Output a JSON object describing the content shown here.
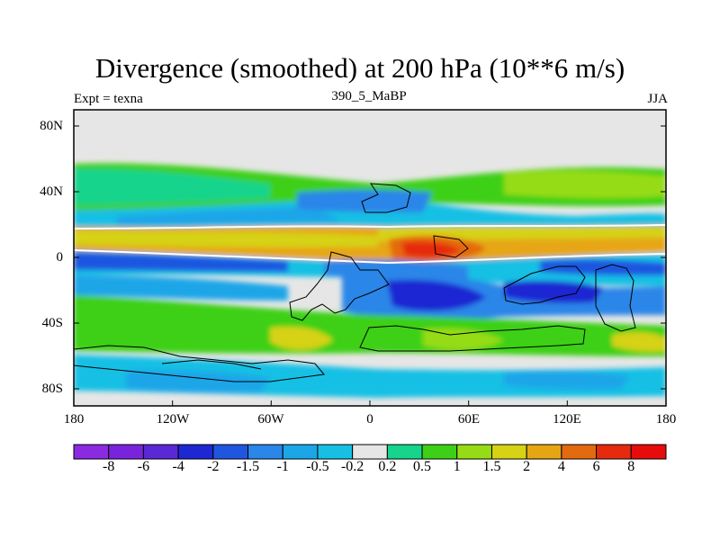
{
  "title": "Divergence (smoothed) at 200 hPa (10**6 m/s)",
  "left_string": "Expt = texna",
  "center_string": "390_5_MaBP",
  "right_string": "JJA",
  "lat_ticks": [
    "80N",
    "40N",
    "0",
    "40S",
    "80S"
  ],
  "lon_ticks": [
    "180",
    "120W",
    "60W",
    "0",
    "60E",
    "120E",
    "180"
  ],
  "colorbar": {
    "labels": [
      "-8",
      "-6",
      "-4",
      "-2",
      "-1.5",
      "-1",
      "-0.5",
      "-0.2",
      "0.2",
      "0.5",
      "1",
      "1.5",
      "2",
      "4",
      "6",
      "8"
    ],
    "colors": [
      "#8a2be2",
      "#7a23dc",
      "#5a28d4",
      "#1e28d2",
      "#1f56e0",
      "#2a86e8",
      "#1ba6e8",
      "#16c0e4",
      "#e6e6e6",
      "#16d48c",
      "#3ed016",
      "#96dc14",
      "#d6d214",
      "#e6a614",
      "#e46a10",
      "#e62a0e",
      "#e60c0c"
    ]
  }
}
